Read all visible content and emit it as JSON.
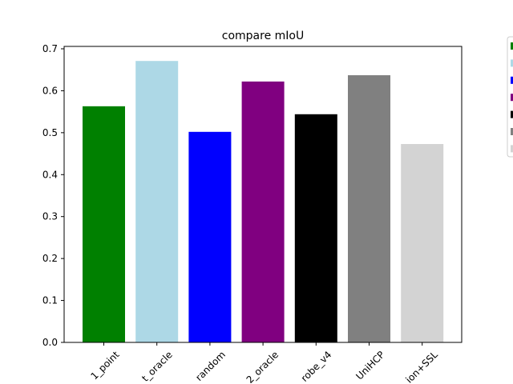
{
  "chart_data": {
    "type": "bar",
    "title": "compare mIoU",
    "xlabel": "",
    "ylabel": "",
    "categories": [
      "1_point",
      "t_oracle",
      "random",
      "2_oracle",
      "robe_v4",
      "UniHCP",
      "ion+SSL"
    ],
    "values": [
      0.563,
      0.671,
      0.502,
      0.622,
      0.544,
      0.637,
      0.473
    ],
    "colors": [
      "#008000",
      "#add8e6",
      "#0000ff",
      "#800080",
      "#000000",
      "#808080",
      "#d3d3d3"
    ],
    "ylim": [
      0,
      0.7
    ],
    "yticks": [
      "0.0",
      "0.1",
      "0.2",
      "0.3",
      "0.4",
      "0.5",
      "0.6",
      "0.7"
    ],
    "grid": false,
    "legend_placement": "right, partially cut off",
    "legend_colors": [
      "#008000",
      "#add8e6",
      "#0000ff",
      "#800080",
      "#000000",
      "#808080",
      "#d3d3d3"
    ]
  }
}
